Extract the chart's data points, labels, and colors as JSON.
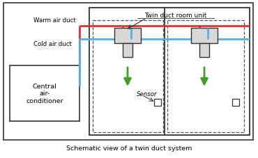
{
  "title": "Schematic view of a twin duct system",
  "bg_color": "#ffffff",
  "warm_duct_label": "Warm air duct",
  "cold_duct_label": "Cold air duct",
  "twin_duct_label": "Twin duct room unit",
  "sensor_label": "Sensor",
  "central_ac_text": "Central\nair-\nconditioner",
  "warm_color": "#e03030",
  "cold_color": "#50b0e8",
  "green_color": "#40a020",
  "black": "#333333",
  "gray_fill": "#d8d8d8",
  "white_fill": "#ffffff"
}
